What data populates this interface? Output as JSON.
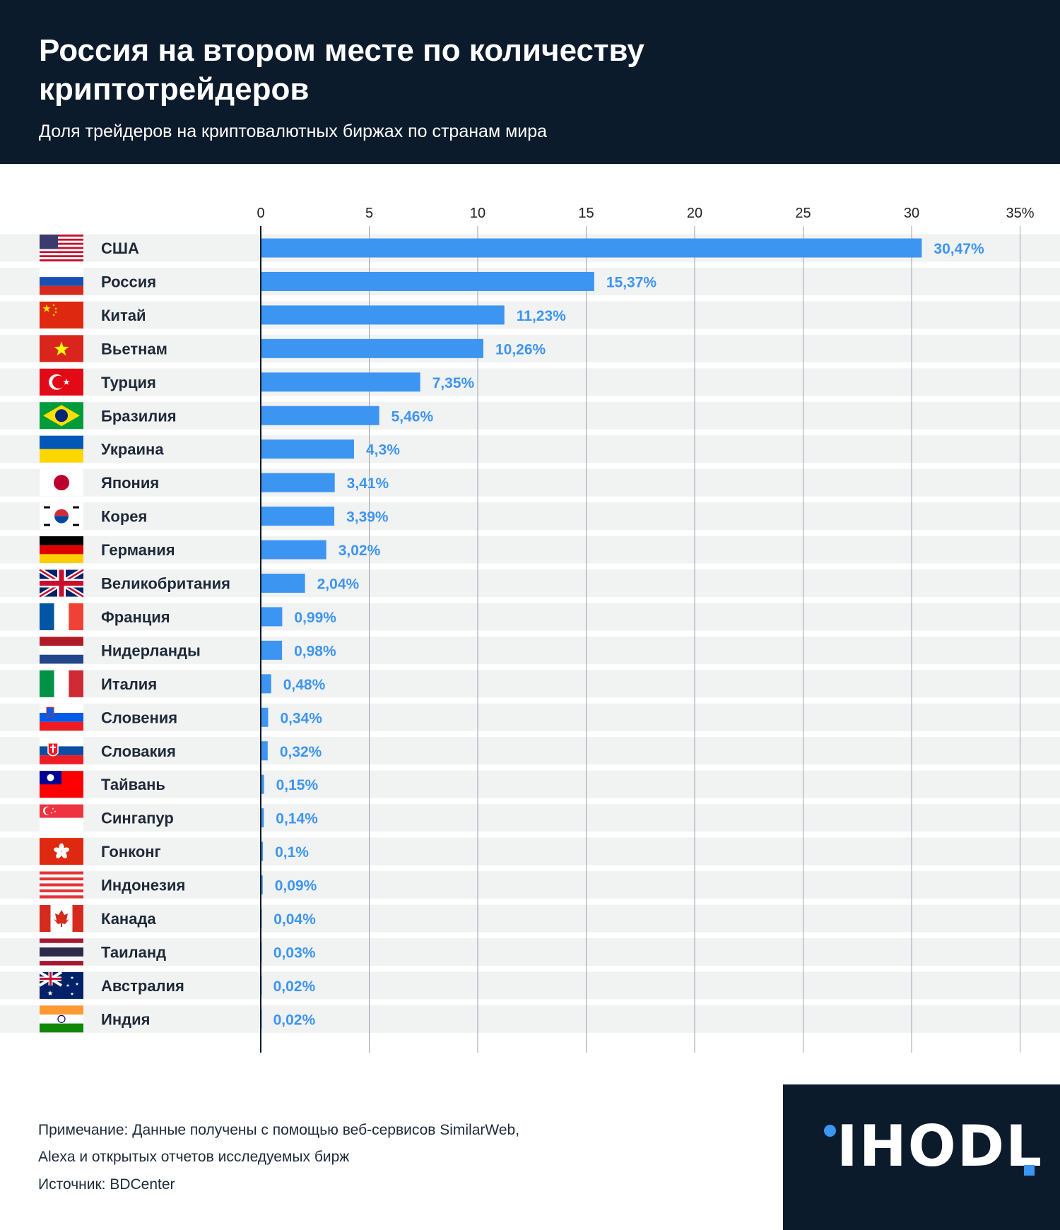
{
  "header": {
    "title": "Россия на втором месте по количеству криптотрейдеров",
    "subtitle": "Доля трейдеров на криптовалютных биржах по странам мира"
  },
  "chart_data": {
    "type": "bar",
    "orientation": "horizontal",
    "title": "Россия на втором месте по количеству криптотрейдеров",
    "subtitle": "Доля трейдеров на криптовалютных биржах по странам мира",
    "xlim": [
      0,
      35
    ],
    "x_ticks": [
      0,
      5,
      10,
      15,
      20,
      25,
      30,
      35
    ],
    "x_tick_labels": [
      "0",
      "5",
      "10",
      "15",
      "20",
      "25",
      "30",
      "35%"
    ],
    "grid": true,
    "bar_color": "#3d95f2",
    "categories": [
      "США",
      "Россия",
      "Китай",
      "Вьетнам",
      "Турция",
      "Бразилия",
      "Украина",
      "Япония",
      "Корея",
      "Германия",
      "Великобритания",
      "Франция",
      "Нидерланды",
      "Италия",
      "Словения",
      "Словакия",
      "Тайвань",
      "Сингапур",
      "Гонконг",
      "Индонезия",
      "Канада",
      "Таиланд",
      "Австралия",
      "Индия"
    ],
    "values": [
      30.47,
      15.37,
      11.23,
      10.26,
      7.35,
      5.46,
      4.3,
      3.41,
      3.39,
      3.02,
      2.04,
      0.99,
      0.98,
      0.48,
      0.34,
      0.32,
      0.15,
      0.14,
      0.1,
      0.09,
      0.04,
      0.03,
      0.02,
      0.02
    ],
    "value_labels": [
      "30,47%",
      "15,37%",
      "11,23%",
      "10,26%",
      "7,35%",
      "5,46%",
      "4,3%",
      "3,41%",
      "3,39%",
      "3,02%",
      "2,04%",
      "0,99%",
      "0,98%",
      "0,48%",
      "0,34%",
      "0,32%",
      "0,15%",
      "0,14%",
      "0,1%",
      "0,09%",
      "0,04%",
      "0,03%",
      "0,02%",
      "0,02%"
    ],
    "flags": [
      "us-flag-icon",
      "russia-flag-icon",
      "china-flag-icon",
      "vietnam-flag-icon",
      "turkey-flag-icon",
      "brazil-flag-icon",
      "ukraine-flag-icon",
      "japan-flag-icon",
      "korea-flag-icon",
      "germany-flag-icon",
      "uk-flag-icon",
      "france-flag-icon",
      "netherlands-flag-icon",
      "italy-flag-icon",
      "slovenia-flag-icon",
      "slovakia-flag-icon",
      "taiwan-flag-icon",
      "singapore-flag-icon",
      "hongkong-flag-icon",
      "indonesia-flag-icon",
      "canada-flag-icon",
      "thailand-flag-icon",
      "australia-flag-icon",
      "india-flag-icon"
    ]
  },
  "footer": {
    "note_line1": "Примечание: Данные получены с помощью веб-сервисов SimilarWeb,",
    "note_line2": "Alexa и открытых отчетов исследуемых бирж",
    "source": "Источник: BDCenter"
  },
  "logo": {
    "text": "IHODL",
    "icon": "ihodl-logo-icon"
  },
  "colors": {
    "header_bg": "#0c1b2c",
    "accent": "#3d95f2",
    "row_stripe": "#f1f2f2"
  }
}
